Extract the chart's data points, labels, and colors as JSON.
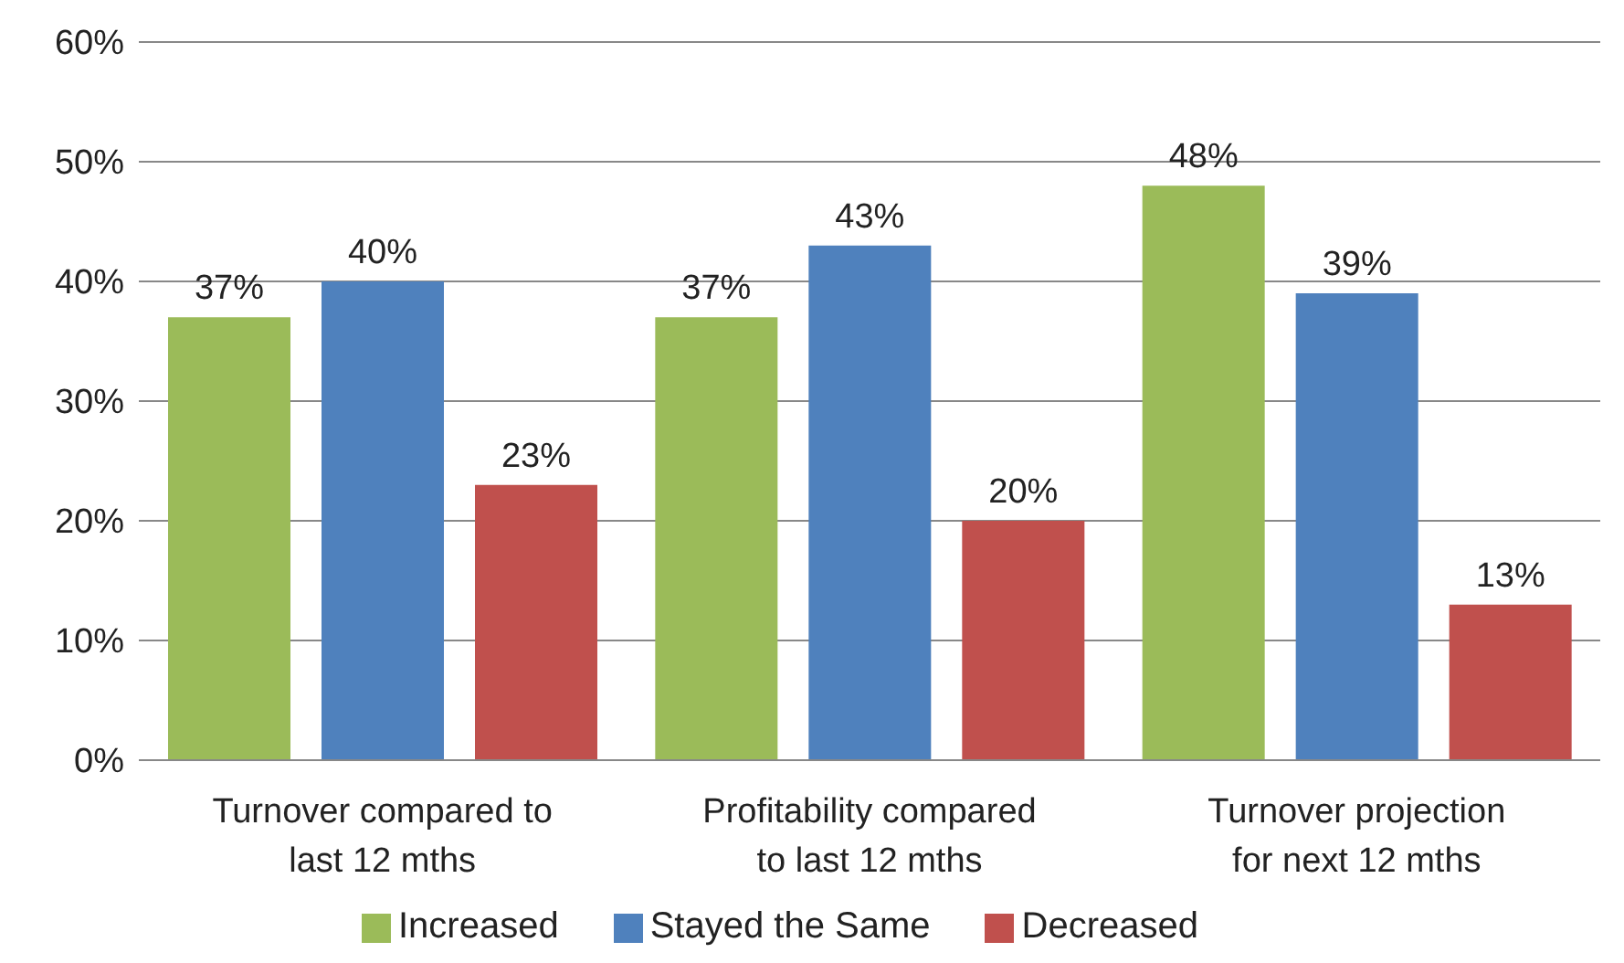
{
  "chart_data": {
    "type": "bar",
    "categories": [
      "Turnover compared to last 12 mths",
      "Profitability compared to last 12 mths",
      "Turnover projection for next 12 mths"
    ],
    "series": [
      {
        "name": "Increased",
        "color": "#9bbb59",
        "values": [
          37,
          37,
          48
        ],
        "value_labels": [
          "37%",
          "37%",
          "48%"
        ]
      },
      {
        "name": "Stayed the Same",
        "color": "#4f81bd",
        "values": [
          40,
          43,
          39
        ],
        "value_labels": [
          "40%",
          "43%",
          "39%"
        ]
      },
      {
        "name": "Decreased",
        "color": "#c0504d",
        "values": [
          23,
          20,
          13
        ],
        "value_labels": [
          "23%",
          "20%",
          "13%"
        ]
      }
    ],
    "ylim": [
      0,
      60
    ],
    "yticks": [
      {
        "value": 0,
        "label": "0%"
      },
      {
        "value": 10,
        "label": "10%"
      },
      {
        "value": 20,
        "label": "20%"
      },
      {
        "value": 30,
        "label": "30%"
      },
      {
        "value": 40,
        "label": "40%"
      },
      {
        "value": 50,
        "label": "50%"
      },
      {
        "value": 60,
        "label": "60%"
      }
    ],
    "grid": "y",
    "legend": "bottom"
  }
}
